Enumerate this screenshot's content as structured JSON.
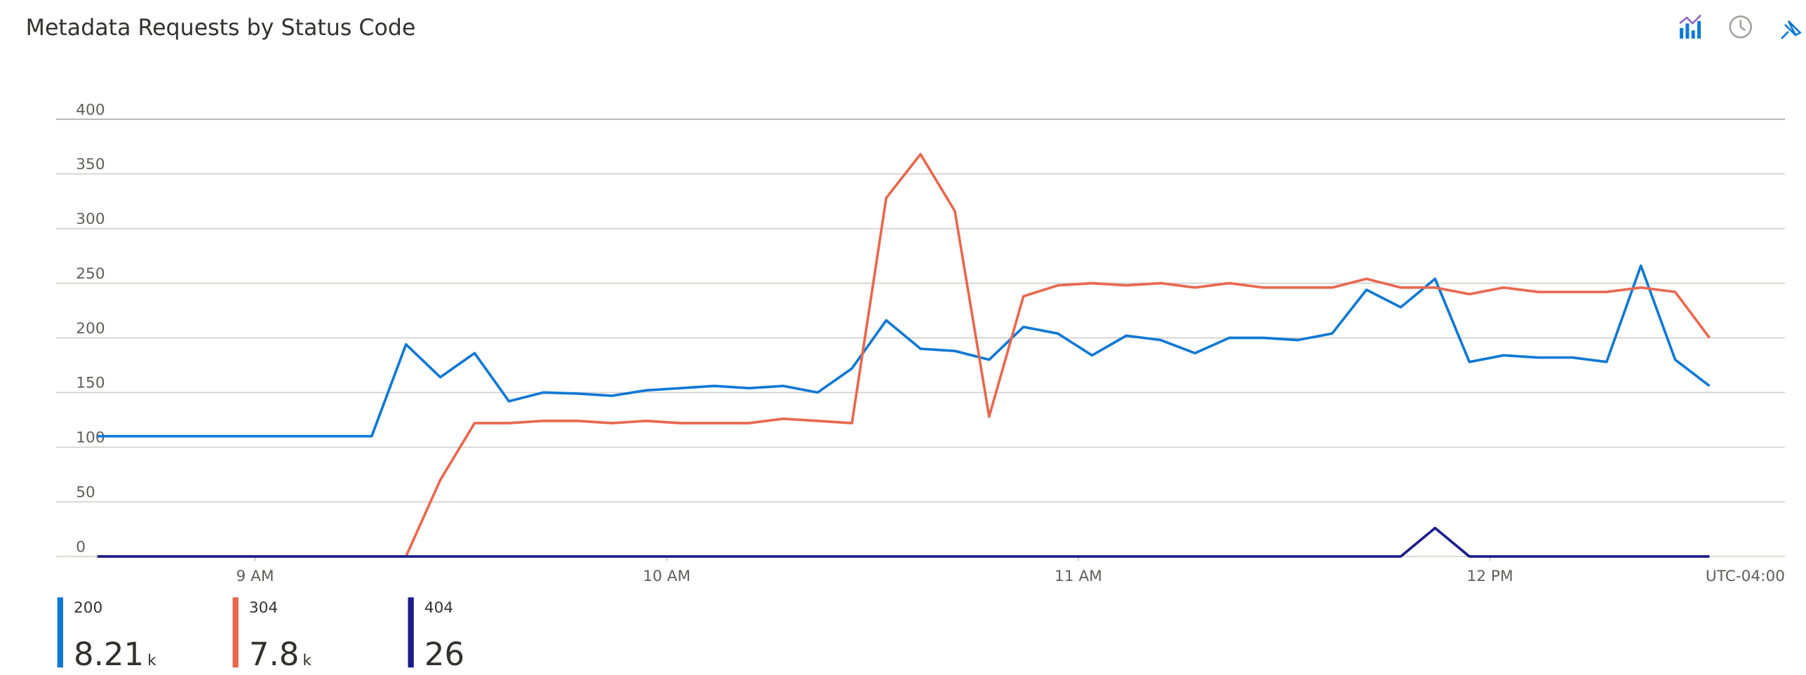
{
  "chart_data": {
    "type": "line",
    "title": "Metadata Requests by Status Code",
    "timezone": "UTC-04:00",
    "x": [
      517,
      522,
      527,
      532,
      537,
      542,
      547,
      552,
      557,
      562,
      567,
      572,
      577,
      582,
      587,
      592,
      597,
      602,
      607,
      612,
      617,
      622,
      627,
      632,
      637,
      642,
      647,
      652,
      657,
      662,
      667,
      672,
      677,
      682,
      687,
      692,
      697,
      702,
      707,
      712,
      717,
      722,
      727,
      732,
      737,
      742,
      747,
      752
    ],
    "xlim": [
      511,
      763
    ],
    "xticks": [
      {
        "value": 540,
        "label": "9 AM"
      },
      {
        "value": 600,
        "label": "10 AM"
      },
      {
        "value": 660,
        "label": "11 AM"
      },
      {
        "value": 720,
        "label": "12 PM"
      }
    ],
    "ylim": [
      0,
      400
    ],
    "yticks": [
      0,
      50,
      100,
      150,
      200,
      250,
      300,
      350,
      400
    ],
    "grid": true,
    "series": [
      {
        "name": "200",
        "color": "#0f78d4",
        "total": 8.21,
        "total_unit": "k",
        "values": [
          110,
          110,
          110,
          110,
          110,
          110,
          110,
          110,
          110,
          194,
          164,
          186,
          142,
          150,
          149,
          147,
          152,
          154,
          156,
          154,
          156,
          150,
          172,
          216,
          190,
          188,
          180,
          210,
          204,
          184,
          202,
          198,
          186,
          200,
          200,
          198,
          204,
          244,
          228,
          254,
          178,
          184,
          182,
          182,
          178,
          266,
          180,
          156
        ]
      },
      {
        "name": "304",
        "color": "#e8684f",
        "total": 7.8,
        "total_unit": "k",
        "values": [
          0,
          0,
          0,
          0,
          0,
          0,
          0,
          0,
          0,
          0,
          70,
          122,
          122,
          124,
          124,
          122,
          124,
          122,
          122,
          122,
          126,
          124,
          122,
          328,
          368,
          316,
          128,
          238,
          248,
          250,
          248,
          250,
          246,
          250,
          246,
          246,
          246,
          254,
          246,
          246,
          240,
          246,
          242,
          242,
          242,
          246,
          242,
          200
        ]
      },
      {
        "name": "404",
        "color": "#1a1d8c",
        "total": 26,
        "values": [
          0,
          0,
          0,
          0,
          0,
          0,
          0,
          0,
          0,
          0,
          0,
          0,
          0,
          0,
          0,
          0,
          0,
          0,
          0,
          0,
          0,
          0,
          0,
          0,
          0,
          0,
          0,
          0,
          0,
          0,
          0,
          0,
          0,
          0,
          0,
          0,
          0,
          0,
          0,
          26,
          0,
          0,
          0,
          0,
          0,
          0,
          0,
          0
        ]
      }
    ]
  }
}
